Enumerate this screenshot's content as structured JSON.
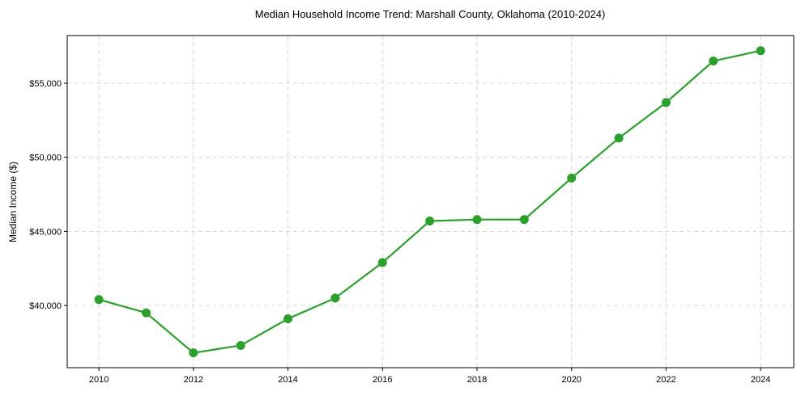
{
  "chart_data": {
    "type": "line",
    "title": "Median Household Income Trend: Marshall County, Oklahoma (2010-2024)",
    "xlabel": "",
    "ylabel": "Median Income ($)",
    "x": [
      2010,
      2011,
      2012,
      2013,
      2014,
      2015,
      2016,
      2017,
      2018,
      2019,
      2020,
      2021,
      2022,
      2023,
      2024
    ],
    "series": [
      {
        "name": "Median Income",
        "color": "#2ca02c",
        "values": [
          40400,
          39500,
          36800,
          37300,
          39100,
          40500,
          42900,
          45700,
          45800,
          45800,
          48600,
          51300,
          53700,
          56500,
          57200
        ]
      }
    ],
    "xticks": [
      2010,
      2012,
      2014,
      2016,
      2018,
      2020,
      2022,
      2024
    ],
    "xtick_labels": [
      "2010",
      "2012",
      "2014",
      "2016",
      "2018",
      "2020",
      "2022",
      "2024"
    ],
    "yticks": [
      40000,
      45000,
      50000,
      55000
    ],
    "ytick_labels": [
      "$40,000",
      "$45,000",
      "$50,000",
      "$55,000"
    ],
    "xlim": [
      2009.33,
      2024.7
    ],
    "ylim": [
      35800,
      58220
    ],
    "grid": true,
    "legend": "none"
  }
}
